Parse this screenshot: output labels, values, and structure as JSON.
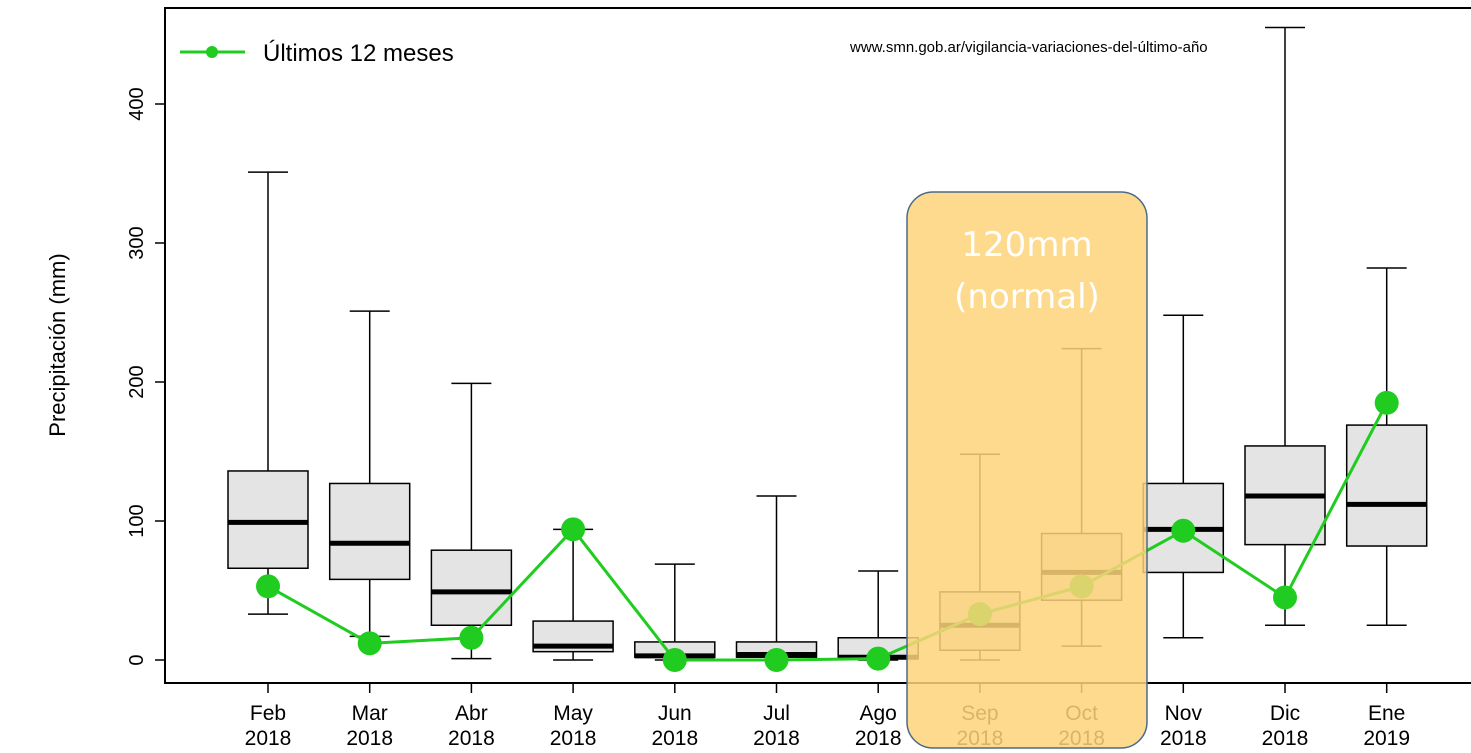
{
  "chart_data": {
    "type": "box",
    "title": "",
    "ylabel": "Precipitación (mm)",
    "xlabel": "",
    "ylim": [
      -17,
      455
    ],
    "yticks": [
      0,
      100,
      200,
      300,
      400
    ],
    "grid": false,
    "legend_position": "top-left",
    "source_url": "www.smn.gob.ar/vigilancia-variaciones-del-último-año",
    "categories": [
      {
        "month": "Feb",
        "year": "2018"
      },
      {
        "month": "Mar",
        "year": "2018"
      },
      {
        "month": "Abr",
        "year": "2018"
      },
      {
        "month": "May",
        "year": "2018"
      },
      {
        "month": "Jun",
        "year": "2018"
      },
      {
        "month": "Jul",
        "year": "2018"
      },
      {
        "month": "Ago",
        "year": "2018"
      },
      {
        "month": "Sep",
        "year": "2018"
      },
      {
        "month": "Oct",
        "year": "2018"
      },
      {
        "month": "Nov",
        "year": "2018"
      },
      {
        "month": "Dic",
        "year": "2018"
      },
      {
        "month": "Ene",
        "year": "2019"
      }
    ],
    "boxes": [
      {
        "min": 33,
        "q1": 66,
        "median": 99,
        "q3": 136,
        "max": 351
      },
      {
        "min": 17,
        "q1": 58,
        "median": 84,
        "q3": 127,
        "max": 251
      },
      {
        "min": 1,
        "q1": 25,
        "median": 49,
        "q3": 79,
        "max": 199
      },
      {
        "min": 0,
        "q1": 6,
        "median": 10,
        "q3": 28,
        "max": 94
      },
      {
        "min": 0,
        "q1": 2,
        "median": 3,
        "q3": 13,
        "max": 69
      },
      {
        "min": 0,
        "q1": 2,
        "median": 4,
        "q3": 13,
        "max": 118
      },
      {
        "min": 0,
        "q1": 1,
        "median": 2,
        "q3": 16,
        "max": 64
      },
      {
        "min": 0,
        "q1": 7,
        "median": 25,
        "q3": 49,
        "max": 148
      },
      {
        "min": 10,
        "q1": 43,
        "median": 63,
        "q3": 91,
        "max": 224
      },
      {
        "min": 16,
        "q1": 63,
        "median": 94,
        "q3": 127,
        "max": 248
      },
      {
        "min": 25,
        "q1": 83,
        "median": 118,
        "q3": 154,
        "max": 455
      },
      {
        "min": 25,
        "q1": 82,
        "median": 112,
        "q3": 169,
        "max": 282
      }
    ],
    "series": [
      {
        "name": "Últimos 12 meses",
        "color": "#1fcc1f",
        "values": [
          53,
          12,
          16,
          94,
          0,
          0,
          1,
          33,
          53,
          93,
          45,
          185
        ]
      }
    ],
    "box_fill": "#e4e4e4",
    "box_stroke": "#000000"
  },
  "annotation": {
    "lines": [
      "120mm",
      "(normal)"
    ],
    "fill": "#fdd47a",
    "stroke": "#4a6a8a",
    "highlight_categories": [
      "Sep",
      "Oct"
    ]
  }
}
